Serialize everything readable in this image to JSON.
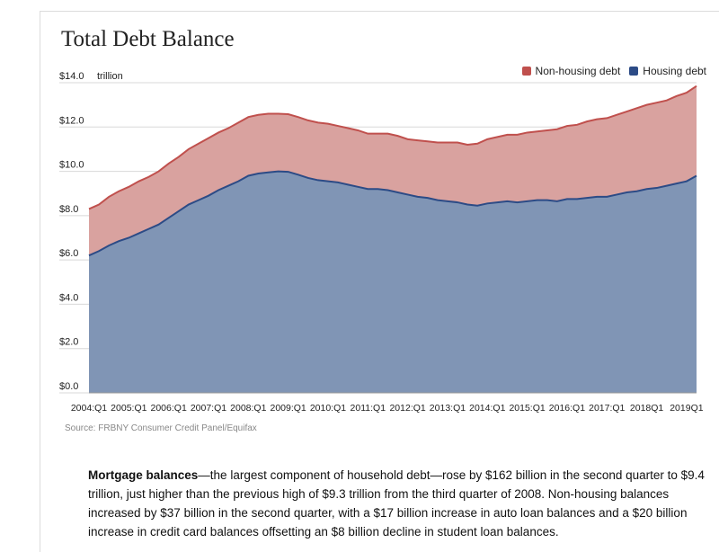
{
  "chart_data": {
    "type": "area",
    "stacked": true,
    "title": "Total Debt Balance",
    "ylabel": "trillion",
    "ylim": [
      0,
      14
    ],
    "yticks": [
      "$0.0",
      "$2.0",
      "$4.0",
      "$6.0",
      "$8.0",
      "$10.0",
      "$12.0",
      "$14.0"
    ],
    "ytick_values": [
      0,
      2,
      4,
      6,
      8,
      10,
      12,
      14
    ],
    "xtick_labels": [
      "2004:Q1",
      "2005:Q1",
      "2006:Q1",
      "2007:Q1",
      "2008:Q1",
      "2009:Q1",
      "2010:Q1",
      "2011:Q1",
      "2012:Q1",
      "2013:Q1",
      "2014:Q1",
      "2015:Q1",
      "2016:Q1",
      "2017:Q1",
      "2018Q1",
      "2019Q1"
    ],
    "x": [
      "2004:Q1",
      "2004:Q2",
      "2004:Q3",
      "2004:Q4",
      "2005:Q1",
      "2005:Q2",
      "2005:Q3",
      "2005:Q4",
      "2006:Q1",
      "2006:Q2",
      "2006:Q3",
      "2006:Q4",
      "2007:Q1",
      "2007:Q2",
      "2007:Q3",
      "2007:Q4",
      "2008:Q1",
      "2008:Q2",
      "2008:Q3",
      "2008:Q4",
      "2009:Q1",
      "2009:Q2",
      "2009:Q3",
      "2009:Q4",
      "2010:Q1",
      "2010:Q2",
      "2010:Q3",
      "2010:Q4",
      "2011:Q1",
      "2011:Q2",
      "2011:Q3",
      "2011:Q4",
      "2012:Q1",
      "2012:Q2",
      "2012:Q3",
      "2012:Q4",
      "2013:Q1",
      "2013:Q2",
      "2013:Q3",
      "2013:Q4",
      "2014:Q1",
      "2014:Q2",
      "2014:Q3",
      "2014:Q4",
      "2015:Q1",
      "2015:Q2",
      "2015:Q3",
      "2015:Q4",
      "2016:Q1",
      "2016:Q2",
      "2016:Q3",
      "2016:Q4",
      "2017:Q1",
      "2017:Q2",
      "2017:Q3",
      "2017:Q4",
      "2018:Q1",
      "2018:Q2",
      "2018:Q3",
      "2018:Q4",
      "2019:Q1",
      "2019:Q2"
    ],
    "series": [
      {
        "name": "Housing debt",
        "color": "#2c4b86",
        "fill": "#8095b5",
        "values": [
          6.2,
          6.4,
          6.65,
          6.85,
          7.0,
          7.2,
          7.4,
          7.6,
          7.9,
          8.2,
          8.5,
          8.7,
          8.9,
          9.15,
          9.35,
          9.55,
          9.8,
          9.9,
          9.95,
          10.0,
          9.98,
          9.85,
          9.7,
          9.6,
          9.55,
          9.5,
          9.4,
          9.3,
          9.2,
          9.2,
          9.15,
          9.05,
          8.95,
          8.85,
          8.8,
          8.7,
          8.65,
          8.6,
          8.5,
          8.45,
          8.55,
          8.6,
          8.65,
          8.6,
          8.65,
          8.7,
          8.7,
          8.65,
          8.75,
          8.75,
          8.8,
          8.85,
          8.85,
          8.95,
          9.05,
          9.1,
          9.2,
          9.25,
          9.35,
          9.45,
          9.55,
          9.8
        ]
      },
      {
        "name": "Non-housing debt",
        "color": "#c0504d",
        "fill": "#d9a29f",
        "values": [
          2.1,
          2.1,
          2.2,
          2.25,
          2.3,
          2.35,
          2.35,
          2.4,
          2.45,
          2.45,
          2.5,
          2.55,
          2.6,
          2.6,
          2.6,
          2.65,
          2.65,
          2.65,
          2.65,
          2.6,
          2.6,
          2.6,
          2.6,
          2.6,
          2.6,
          2.55,
          2.55,
          2.55,
          2.5,
          2.5,
          2.55,
          2.55,
          2.5,
          2.55,
          2.55,
          2.6,
          2.65,
          2.7,
          2.7,
          2.8,
          2.9,
          2.95,
          3.0,
          3.05,
          3.1,
          3.1,
          3.15,
          3.25,
          3.3,
          3.35,
          3.45,
          3.5,
          3.55,
          3.6,
          3.65,
          3.75,
          3.8,
          3.85,
          3.85,
          3.95,
          4.0,
          4.05
        ]
      }
    ],
    "legend_position": "top-right",
    "grid": true
  },
  "legend": {
    "non_housing": "Non-housing debt",
    "housing": "Housing debt"
  },
  "source": "Source: FRBNY Consumer Credit Panel/Equifax",
  "paragraph": {
    "bold": "Mortgage balances",
    "text": "—the largest component of household debt—rose by $162 billion in the second quarter to $9.4 trillion, just higher than the previous high of $9.3 trillion from the third quarter of 2008. Non-housing balances increased by $37 billion in the second quarter, with a $17 billion increase in auto loan balances and a $20 billion increase in credit card balances offsetting an $8 billion decline in student loan balances."
  }
}
